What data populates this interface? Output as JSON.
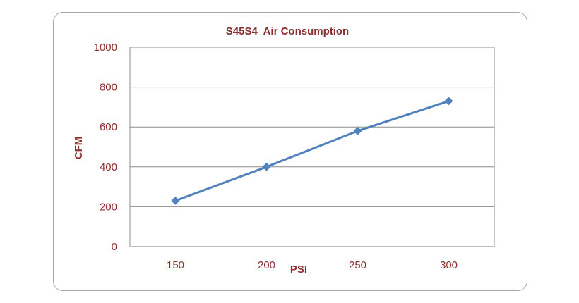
{
  "chart_data": {
    "type": "line",
    "title": "S45S4  Air Consumption",
    "xlabel": "PSI",
    "ylabel": "CFM",
    "categories": [
      "150",
      "200",
      "250",
      "300"
    ],
    "x": [
      150,
      200,
      250,
      300
    ],
    "series": [
      {
        "values": [
          230,
          400,
          580,
          730
        ]
      }
    ],
    "ylim": [
      0,
      1000
    ],
    "yticks": [
      "0",
      "200",
      "400",
      "600",
      "800",
      "1000"
    ],
    "grid": true,
    "legend": "none",
    "marker": "diamond",
    "colors": {
      "line": "#4f81bd",
      "text": "#8b2f2f",
      "grid": "#8c8c8c",
      "frame": "#a6a6a6"
    }
  }
}
